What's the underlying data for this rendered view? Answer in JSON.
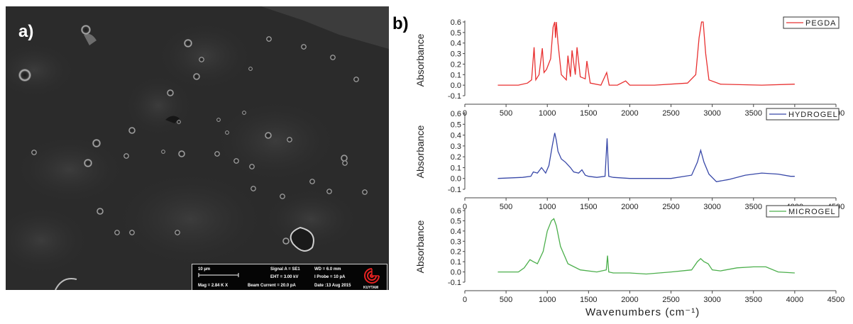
{
  "panel_a_label": "a)",
  "panel_b_label": "b)",
  "sem_info": {
    "scale_text": "10 µm",
    "mag": "Mag =   2.84 K X",
    "signal": "Signal A = SE1",
    "eht": "EHT =  3.00 kV",
    "beam": "Beam Current =  20.0 pA",
    "wd": "WD =   6.0 mm",
    "iprobe": "I Probe =    10 pA",
    "date": "Date :13 Aug 2015",
    "logo_text": "KUYTAM"
  },
  "x_axis_title": "Wavenumbers (cm⁻¹)",
  "chart_data": [
    {
      "type": "line",
      "ylabel": "Absorbance",
      "ylim": [
        -0.1,
        0.6
      ],
      "xlim": [
        0,
        4500
      ],
      "x_ticks": [
        0,
        500,
        1000,
        1500,
        2000,
        2500,
        3000,
        3500,
        4000,
        4500
      ],
      "y_ticks": [
        -0.1,
        0.0,
        0.1,
        0.2,
        0.3,
        0.4,
        0.5,
        0.6
      ],
      "legend_position": "top-right",
      "series": [
        {
          "name": "PEGDA",
          "color": "#e83030",
          "x": [
            400,
            650,
            760,
            810,
            840,
            860,
            900,
            940,
            960,
            990,
            1040,
            1070,
            1090,
            1100,
            1110,
            1130,
            1170,
            1230,
            1250,
            1280,
            1300,
            1340,
            1360,
            1400,
            1460,
            1480,
            1520,
            1650,
            1720,
            1750,
            1850,
            1950,
            2000,
            2300,
            2700,
            2800,
            2840,
            2870,
            2890,
            2920,
            2960,
            3100,
            3600,
            4000
          ],
          "y": [
            0.0,
            0.0,
            0.02,
            0.05,
            0.36,
            0.05,
            0.1,
            0.35,
            0.12,
            0.15,
            0.25,
            0.55,
            0.6,
            0.45,
            0.6,
            0.4,
            0.1,
            0.05,
            0.28,
            0.08,
            0.33,
            0.1,
            0.36,
            0.08,
            0.06,
            0.23,
            0.02,
            0.0,
            0.12,
            0.0,
            0.0,
            0.04,
            0.0,
            0.0,
            0.02,
            0.1,
            0.45,
            0.6,
            0.6,
            0.3,
            0.05,
            0.01,
            0.0,
            0.01
          ]
        }
      ]
    },
    {
      "type": "line",
      "ylabel": "Absorbance",
      "ylim": [
        -0.1,
        0.6
      ],
      "xlim": [
        0,
        4500
      ],
      "x_ticks": [
        0,
        500,
        1000,
        1500,
        2000,
        2500,
        3000,
        3500,
        4000,
        4500
      ],
      "y_ticks": [
        -0.1,
        0.0,
        0.1,
        0.2,
        0.3,
        0.4,
        0.5,
        0.6
      ],
      "legend_position": "top-right",
      "series": [
        {
          "name": "HYDROGEL",
          "color": "#3848a8",
          "x": [
            400,
            700,
            800,
            830,
            880,
            930,
            980,
            1020,
            1060,
            1090,
            1110,
            1130,
            1170,
            1220,
            1280,
            1320,
            1380,
            1420,
            1460,
            1500,
            1600,
            1700,
            1725,
            1745,
            1800,
            2000,
            2500,
            2750,
            2820,
            2860,
            2900,
            2960,
            3050,
            3200,
            3400,
            3600,
            3800,
            3950,
            4000
          ],
          "y": [
            0.0,
            0.01,
            0.02,
            0.06,
            0.05,
            0.1,
            0.05,
            0.12,
            0.3,
            0.42,
            0.35,
            0.25,
            0.18,
            0.15,
            0.1,
            0.06,
            0.05,
            0.08,
            0.03,
            0.02,
            0.01,
            0.02,
            0.37,
            0.02,
            0.01,
            0.0,
            0.0,
            0.03,
            0.15,
            0.26,
            0.15,
            0.04,
            -0.03,
            -0.01,
            0.03,
            0.05,
            0.04,
            0.02,
            0.02
          ]
        }
      ]
    },
    {
      "type": "line",
      "ylabel": "Absorbance",
      "ylim": [
        -0.1,
        0.6
      ],
      "xlim": [
        0,
        4500
      ],
      "x_ticks": [
        0,
        500,
        1000,
        1500,
        2000,
        2500,
        3000,
        3500,
        4000,
        4500
      ],
      "y_ticks": [
        -0.1,
        0.0,
        0.1,
        0.2,
        0.3,
        0.4,
        0.5,
        0.6
      ],
      "legend_position": "top-right",
      "series": [
        {
          "name": "MICROGEL",
          "color": "#4caf4c",
          "x": [
            400,
            650,
            720,
            790,
            830,
            880,
            950,
            1000,
            1050,
            1080,
            1110,
            1160,
            1250,
            1400,
            1600,
            1715,
            1730,
            1745,
            1800,
            2000,
            2200,
            2500,
            2750,
            2820,
            2860,
            2900,
            2950,
            3000,
            3100,
            3300,
            3500,
            3650,
            3800,
            4000
          ],
          "y": [
            0.0,
            0.0,
            0.04,
            0.12,
            0.1,
            0.08,
            0.2,
            0.4,
            0.5,
            0.52,
            0.45,
            0.25,
            0.08,
            0.02,
            0.0,
            0.02,
            0.16,
            0.0,
            -0.01,
            -0.01,
            -0.02,
            0.0,
            0.02,
            0.1,
            0.13,
            0.1,
            0.08,
            0.02,
            0.01,
            0.04,
            0.05,
            0.05,
            0.0,
            -0.01
          ]
        }
      ]
    }
  ]
}
